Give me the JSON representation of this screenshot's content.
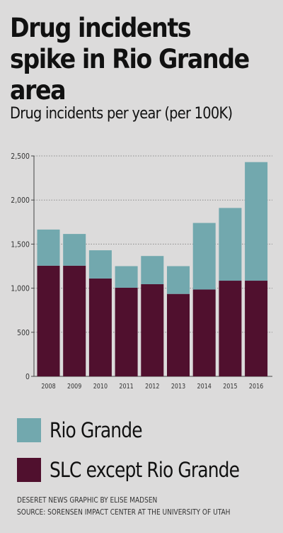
{
  "title": "Drug incidents spike in Rio Grande area",
  "subtitle": "Drug incidents per year (per 100K)",
  "colors": {
    "rio_grande": "#72a8ae",
    "slc_except": "#50102e",
    "grid": "#8c8c8c",
    "background": "#dcdbdb"
  },
  "legend": {
    "rio_grande": "Rio Grande",
    "slc_except": "SLC except Rio Grande"
  },
  "credits": {
    "line1": "DESERET NEWS GRAPHIC BY ELISE MADSEN",
    "line2": "SOURCE: SORENSEN IMPACT CENTER AT THE UNIVERSITY OF UTAH"
  },
  "chart_data": {
    "type": "bar",
    "stacked": true,
    "title": "Drug incidents per year (per 100K)",
    "xlabel": "",
    "ylabel": "",
    "categories": [
      "2008",
      "2009",
      "2010",
      "2011",
      "2012",
      "2013",
      "2014",
      "2015",
      "2016"
    ],
    "series": [
      {
        "name": "SLC except Rio Grande",
        "color": "#50102e",
        "values": [
          1255,
          1255,
          1110,
          1005,
          1045,
          935,
          985,
          1085,
          1085
        ]
      },
      {
        "name": "Rio Grande",
        "color": "#72a8ae",
        "values": [
          410,
          360,
          320,
          245,
          320,
          315,
          755,
          825,
          1345
        ]
      }
    ],
    "ylim": [
      0,
      2500
    ],
    "yticks": [
      0,
      500,
      1000,
      1500,
      2000,
      2500
    ],
    "ytick_labels": [
      "0",
      "500",
      "1,000",
      "1,500",
      "2,000",
      "2,500"
    ],
    "grid": true,
    "grid_style": "dotted horizontal"
  }
}
